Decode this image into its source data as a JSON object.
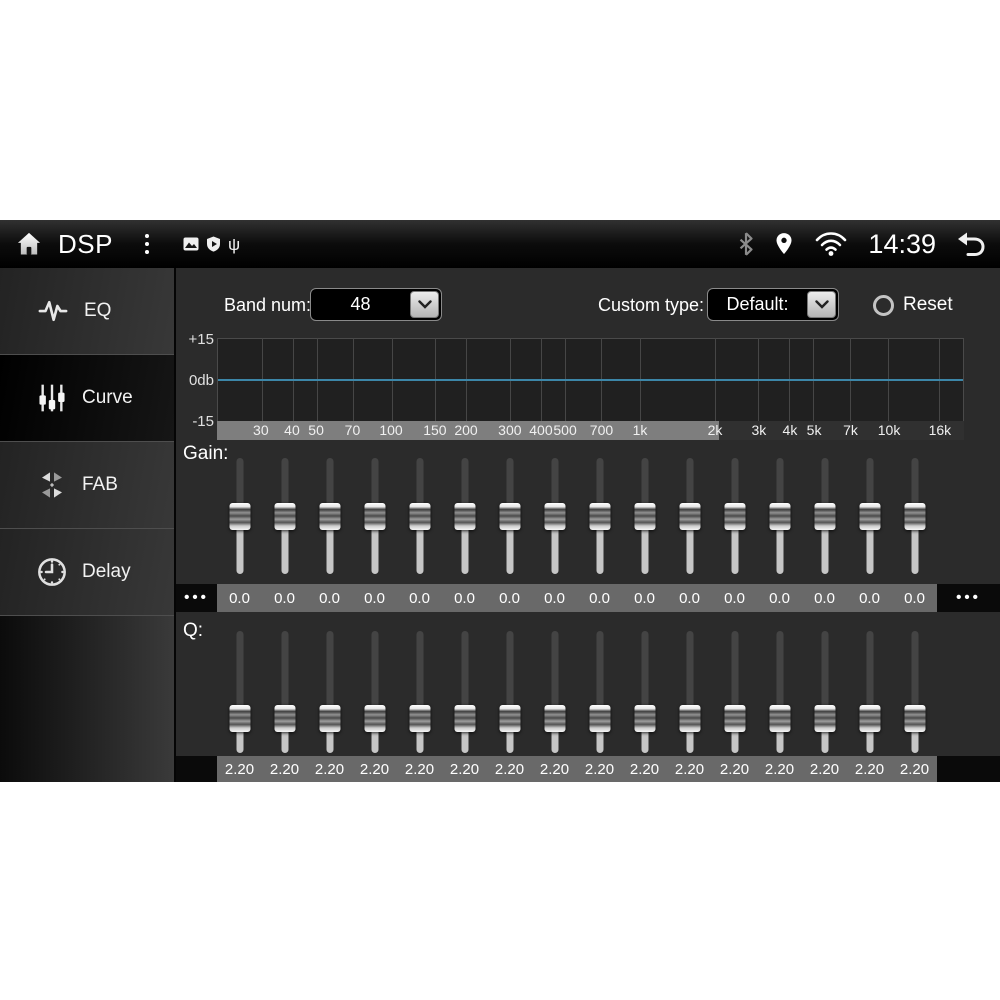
{
  "status": {
    "title": "DSP",
    "time": "14:39",
    "icons_left": [
      "home-icon",
      "kebab-menu-icon",
      "picture-icon",
      "shield-play-icon",
      "usb-icon"
    ],
    "icons_right": [
      "bluetooth-icon",
      "location-icon",
      "wifi-icon",
      "back-icon"
    ],
    "usb_glyph": "ψ"
  },
  "sidebar": {
    "items": [
      {
        "label": "EQ",
        "icon": "waveform-icon",
        "selected": false
      },
      {
        "label": "Curve",
        "icon": "faders-icon",
        "selected": true
      },
      {
        "label": "FAB",
        "icon": "fab-arrows-icon",
        "selected": false
      },
      {
        "label": "Delay",
        "icon": "clock-icon",
        "selected": false
      }
    ]
  },
  "controls": {
    "band_num_label": "Band num:",
    "band_num_value": "48",
    "custom_type_label": "Custom type:",
    "custom_type_value": "Default:",
    "reset_label": "Reset"
  },
  "chart_data": {
    "type": "line",
    "title": "EQ frequency response curve",
    "x_scale": "log",
    "x_range_hz": [
      20,
      20000
    ],
    "x_tick_hz": [
      30,
      40,
      50,
      70,
      100,
      150,
      200,
      300,
      400,
      500,
      700,
      1000,
      2000,
      3000,
      4000,
      5000,
      7000,
      10000,
      16000
    ],
    "x_tick_labels": [
      "30",
      "40",
      "50",
      "70",
      "100",
      "150",
      "200",
      "300",
      "400",
      "500",
      "700",
      "1k",
      "2k",
      "3k",
      "4k",
      "5k",
      "7k",
      "10k",
      "16k"
    ],
    "y_tick_labels": [
      "+15",
      "0db",
      "-15"
    ],
    "ylim": [
      -15,
      15
    ],
    "grid": true,
    "series": [
      {
        "name": "eq-curve",
        "value_db": 0,
        "shape": "flat line at 0 dB",
        "color": "#3c86a8"
      }
    ]
  },
  "colors": {
    "curve_blue": "#3c86a8",
    "strip_light": "#7e7e7e",
    "strip_dark": "#303030",
    "value_strip": "#696969",
    "track_top": "#444444",
    "track_bottom": "#c6c6c6"
  },
  "gain": {
    "label": "Gain:",
    "min": -15,
    "max": 15,
    "values": [
      0.0,
      0.0,
      0.0,
      0.0,
      0.0,
      0.0,
      0.0,
      0.0,
      0.0,
      0.0,
      0.0,
      0.0,
      0.0,
      0.0,
      0.0,
      0.0
    ],
    "display": [
      "0.0",
      "0.0",
      "0.0",
      "0.0",
      "0.0",
      "0.0",
      "0.0",
      "0.0",
      "0.0",
      "0.0",
      "0.0",
      "0.0",
      "0.0",
      "0.0",
      "0.0",
      "0.0"
    ],
    "scroll_left_glyph": "•••",
    "scroll_right_glyph": "•••"
  },
  "q": {
    "label": "Q:",
    "min": 0,
    "max": 10,
    "values": [
      2.2,
      2.2,
      2.2,
      2.2,
      2.2,
      2.2,
      2.2,
      2.2,
      2.2,
      2.2,
      2.2,
      2.2,
      2.2,
      2.2,
      2.2,
      2.2
    ],
    "display": [
      "2.20",
      "2.20",
      "2.20",
      "2.20",
      "2.20",
      "2.20",
      "2.20",
      "2.20",
      "2.20",
      "2.20",
      "2.20",
      "2.20",
      "2.20",
      "2.20",
      "2.20",
      "2.20"
    ]
  }
}
